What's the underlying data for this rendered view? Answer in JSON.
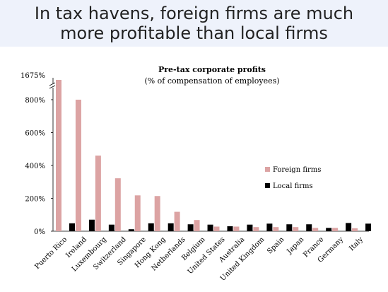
{
  "slide": {
    "title_line1": "In tax havens, foreign firms are much",
    "title_line2": "more profitable than local firms",
    "background_color": "#eef2fb"
  },
  "chart_data": {
    "type": "bar",
    "title": "Pre-tax corporate profits",
    "subtitle": "(% of compensation of employees)",
    "categories": [
      "Puerto Rico",
      "Ireland",
      "Luxembourg",
      "Switzerland",
      "Singapore",
      "Hong Kong",
      "Netherlands",
      "Belgium",
      "United States",
      "Australia",
      "United Kingdom",
      "Spain",
      "Japan",
      "France",
      "Germany",
      "Italy"
    ],
    "series": [
      {
        "name": "Foreign firms",
        "color": "#dca3a3",
        "values": [
          1675,
          800,
          460,
          322,
          218,
          214,
          118,
          68,
          28,
          28,
          25,
          25,
          25,
          20,
          20,
          18
        ]
      },
      {
        "name": "Local firms",
        "color": "#000000",
        "values": [
          48,
          70,
          40,
          12,
          48,
          48,
          42,
          40,
          30,
          40,
          46,
          42,
          42,
          20,
          50,
          46
        ]
      }
    ],
    "y_ticks": [
      0,
      200,
      400,
      600,
      800
    ],
    "y_tick_labels": [
      "0%",
      "200%",
      "400%",
      "600%",
      "800%"
    ],
    "y_break_label": "1675%",
    "ylim": [
      0,
      1675
    ],
    "axis_break": true,
    "grid": false,
    "legend_position": "right"
  }
}
